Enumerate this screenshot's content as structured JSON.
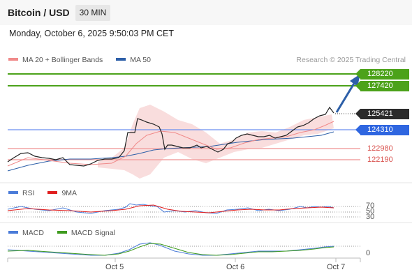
{
  "header": {
    "title": "Bitcoin / USD",
    "timeframe": "30 MIN"
  },
  "date": "Monday, October 6, 2025 9:50:03 PM CET",
  "legend_main": [
    {
      "label": "MA 20 + Bollinger Bands",
      "color": "#f08a8a"
    },
    {
      "label": "MA 50",
      "color": "#2d5fa8"
    }
  ],
  "credit": "Research © 2025 Trading Central",
  "levels": {
    "r2": "128220",
    "r1": "127420",
    "last": "125421",
    "pivot": "124310",
    "s1": "122980",
    "s2": "122190"
  },
  "rsi": {
    "label": "RSI",
    "ma_label": "9MA",
    "color": "#4a7bd8",
    "ma_color": "#e01e1e",
    "levels": [
      "70",
      "50",
      "30"
    ]
  },
  "macd": {
    "label": "MACD",
    "signal_label": "MACD Signal",
    "color": "#4a7bd8",
    "signal_color": "#3f9b1f",
    "zero": "0"
  },
  "xaxis": [
    "Oct 5",
    "Oct 6",
    "Oct 7"
  ]
}
